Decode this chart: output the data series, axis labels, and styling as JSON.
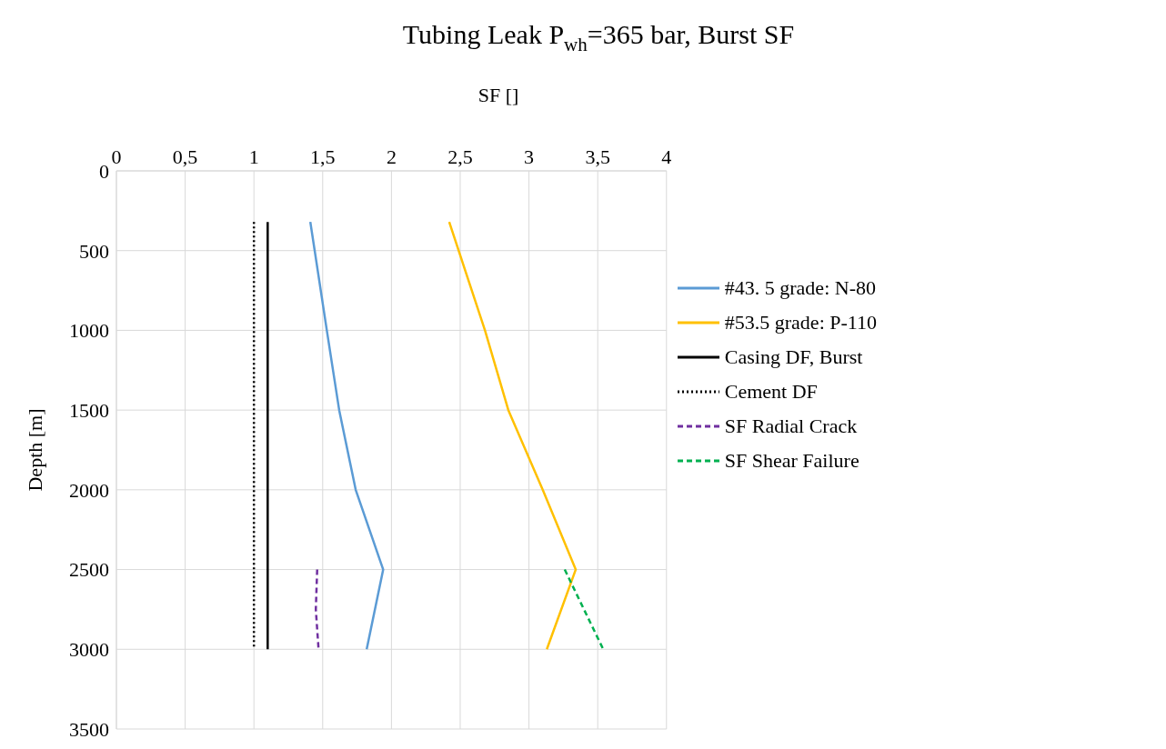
{
  "chart_data": {
    "type": "line",
    "title": "Tubing Leak P$_{wh}$=365 bar, Burst SF",
    "xlabel": "SF []",
    "ylabel": "Depth [m]",
    "xlim": [
      0,
      4
    ],
    "xticks": [
      0,
      {
        "value": 0.5,
        "label": "0,5"
      },
      1,
      {
        "value": 1.5,
        "label": "1,5"
      },
      2,
      {
        "value": 2.5,
        "label": "2,5"
      },
      3,
      {
        "value": 3.5,
        "label": "3,5"
      },
      4
    ],
    "ylim": [
      3500,
      0
    ],
    "yticks": [
      0,
      500,
      1000,
      1500,
      2000,
      2500,
      3000,
      3500
    ],
    "grid": true,
    "legend": "right",
    "marker": "none",
    "series": [
      {
        "name": "#43. 5 grade: N-80",
        "color": "#5b9bd5",
        "line_style": "solid",
        "x": [
          1.41,
          1.53,
          1.62,
          1.74,
          1.94,
          1.82
        ],
        "values": [
          320,
          1000,
          1500,
          2000,
          2500,
          3000
        ]
      },
      {
        "name": "#53.5 grade: P-110",
        "color": "#ffc000",
        "line_style": "solid",
        "x": [
          2.42,
          2.68,
          2.85,
          3.1,
          3.34,
          3.13
        ],
        "values": [
          320,
          1000,
          1500,
          2000,
          2500,
          3000
        ]
      },
      {
        "name": "Casing DF, Burst",
        "color": "#000000",
        "line_style": "solid",
        "x": [
          1.1,
          1.1
        ],
        "values": [
          320,
          3000
        ]
      },
      {
        "name": "Cement DF",
        "color": "#000000",
        "line_style": "dotted",
        "x": [
          1.0,
          1.0
        ],
        "values": [
          320,
          3000
        ]
      },
      {
        "name": "SF Radial Crack",
        "color": "#7030a0",
        "line_style": "dashed",
        "x": [
          1.46,
          1.45,
          1.47
        ],
        "values": [
          2500,
          2750,
          3000
        ]
      },
      {
        "name": "SF Shear Failure",
        "color": "#00b050",
        "line_style": "dashed",
        "x": [
          3.26,
          3.54
        ],
        "values": [
          2500,
          3000
        ]
      }
    ]
  }
}
